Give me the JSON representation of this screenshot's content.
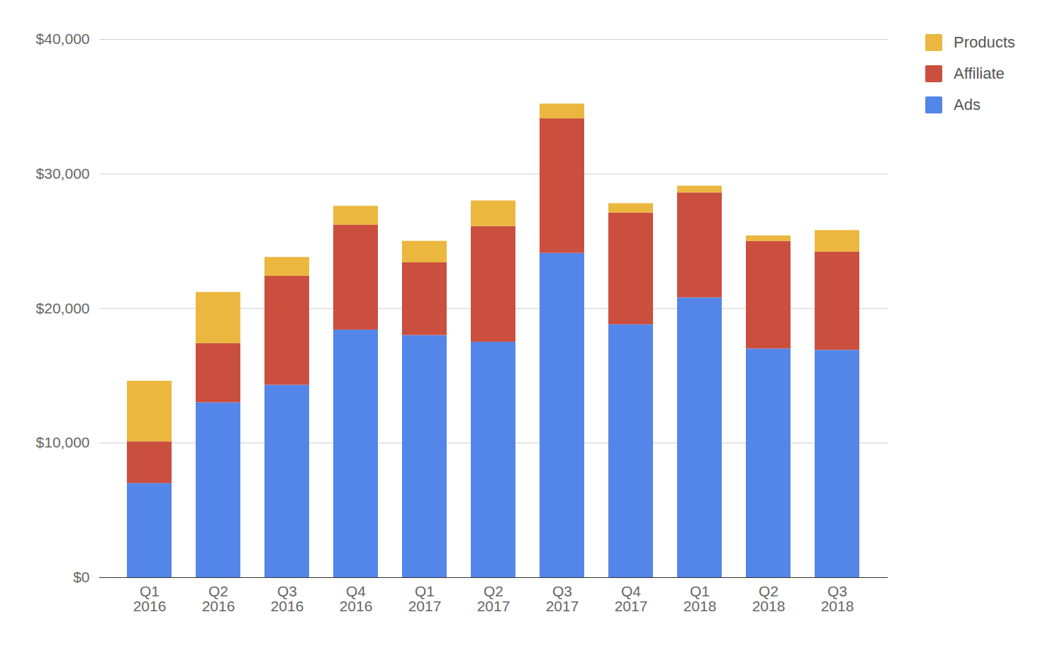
{
  "chart_data": {
    "type": "bar",
    "stacked": true,
    "grid": true,
    "legend": "top-right",
    "categories": [
      "Q1 2016",
      "Q2 2016",
      "Q3 2016",
      "Q4 2016",
      "Q1 2017",
      "Q2 2017",
      "Q3 2017",
      "Q4 2017",
      "Q1 2018",
      "Q2 2018",
      "Q3 2018"
    ],
    "series": [
      {
        "name": "Ads",
        "color": "#5486ea",
        "values": [
          7000,
          13000,
          14300,
          18400,
          18000,
          17500,
          24100,
          18800,
          20800,
          17000,
          16900
        ]
      },
      {
        "name": "Affiliate",
        "color": "#cb4f3e",
        "values": [
          3100,
          4400,
          8100,
          7800,
          5400,
          8600,
          10000,
          8300,
          7800,
          8000,
          7300
        ]
      },
      {
        "name": "Products",
        "color": "#ebb73e",
        "values": [
          4500,
          3800,
          1400,
          1400,
          1600,
          1900,
          1100,
          700,
          500,
          400,
          1600
        ]
      }
    ],
    "ylim": [
      0,
      40000
    ],
    "yticks": [
      {
        "value": 0,
        "label": "$0"
      },
      {
        "value": 10000,
        "label": "$10,000"
      },
      {
        "value": 20000,
        "label": "$20,000"
      },
      {
        "value": 30000,
        "label": "$30,000"
      },
      {
        "value": 40000,
        "label": "$40,000"
      }
    ]
  }
}
